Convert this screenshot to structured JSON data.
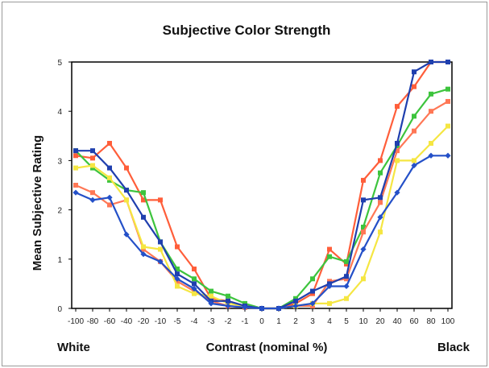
{
  "chart_data": {
    "type": "line",
    "title": "Subjective Color Strength",
    "xlabel": "Contrast (nominal %)",
    "ylabel": "Mean Subjective Rating",
    "left_end_label": "White",
    "right_end_label": "Black",
    "categories": [
      "-100",
      "-80",
      "-60",
      "-40",
      "-20",
      "-10",
      "-5",
      "-4",
      "-3",
      "-2",
      "-1",
      "0",
      "1",
      "2",
      "3",
      "4",
      "5",
      "10",
      "20",
      "40",
      "60",
      "80",
      "100"
    ],
    "yticks": [
      "0",
      "1",
      "2",
      "3",
      "4",
      "5"
    ],
    "ylim": [
      0,
      5
    ],
    "grid": false,
    "legend": "none",
    "series": [
      {
        "color": "#ff5e3a",
        "values": [
          3.1,
          3.05,
          3.35,
          2.85,
          2.2,
          2.2,
          1.25,
          0.8,
          0.2,
          0.15,
          0.05,
          0,
          0,
          0.1,
          0.3,
          1.2,
          0.9,
          2.6,
          3.0,
          4.1,
          4.5,
          5.0,
          5.0
        ]
      },
      {
        "color": "#3dc43d",
        "values": [
          3.2,
          2.85,
          2.6,
          2.4,
          2.35,
          1.35,
          0.8,
          0.6,
          0.35,
          0.25,
          0.1,
          0,
          0,
          0.2,
          0.6,
          1.05,
          0.95,
          1.65,
          2.75,
          3.3,
          3.9,
          4.35,
          4.45
        ]
      },
      {
        "color": "#ff7755",
        "values": [
          2.5,
          2.35,
          2.1,
          2.2,
          1.2,
          0.95,
          0.55,
          0.35,
          0.15,
          0.05,
          0.02,
          0,
          0,
          0.05,
          0.05,
          0.55,
          0.6,
          1.55,
          2.15,
          3.2,
          3.6,
          4.0,
          4.2
        ]
      },
      {
        "color": "#f5e642",
        "values": [
          2.85,
          2.9,
          2.65,
          2.2,
          1.25,
          1.2,
          0.45,
          0.3,
          0.25,
          0.1,
          0.05,
          0,
          0,
          0.05,
          0.1,
          0.1,
          0.2,
          0.6,
          1.55,
          3.0,
          3.0,
          3.35,
          3.7
        ]
      },
      {
        "color": "#1f3fae",
        "values": [
          3.2,
          3.2,
          2.85,
          2.4,
          1.85,
          1.35,
          0.7,
          0.5,
          0.15,
          0.15,
          0.05,
          0,
          0,
          0.15,
          0.35,
          0.5,
          0.65,
          2.2,
          2.25,
          3.35,
          4.8,
          5.0,
          5.0
        ]
      },
      {
        "color": "#2450c8",
        "values": [
          2.35,
          2.2,
          2.25,
          1.5,
          1.1,
          0.95,
          0.6,
          0.4,
          0.1,
          0.05,
          0.02,
          0,
          0,
          0.05,
          0.1,
          0.45,
          0.45,
          1.2,
          1.85,
          2.35,
          2.9,
          3.1,
          3.1
        ]
      }
    ]
  }
}
